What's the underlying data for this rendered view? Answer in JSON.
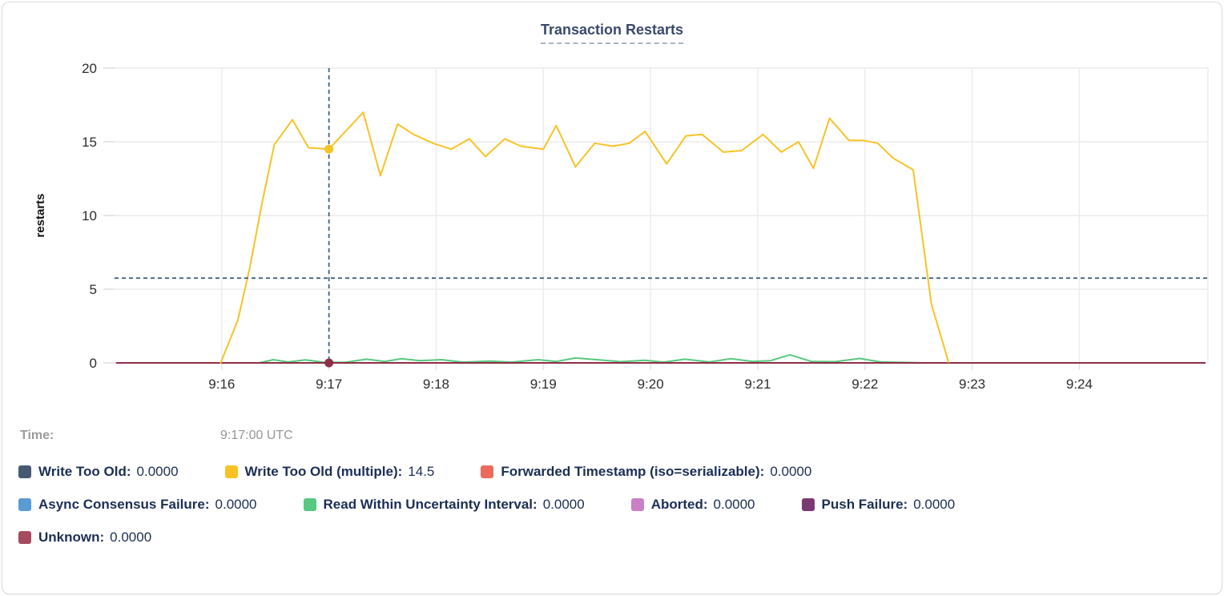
{
  "chart": {
    "title": "Transaction Restarts",
    "ylabel": "restarts"
  },
  "time_row": {
    "label": "Time:",
    "value": "9:17:00 UTC"
  },
  "legend": {
    "items": [
      {
        "label": "Write Too Old:",
        "value": "0.0000",
        "color": "#475872"
      },
      {
        "label": "Write Too Old (multiple):",
        "value": "14.5",
        "color": "#f7c325"
      },
      {
        "label": "Forwarded Timestamp (iso=serializable):",
        "value": "0.0000",
        "color": "#eb6a5c"
      },
      {
        "label": "Async Consensus Failure:",
        "value": "0.0000",
        "color": "#5a9bd3"
      },
      {
        "label": "Read Within Uncertainty Interval:",
        "value": "0.0000",
        "color": "#57c87f"
      },
      {
        "label": "Aborted:",
        "value": "0.0000",
        "color": "#ca7fc6"
      },
      {
        "label": "Push Failure:",
        "value": "0.0000",
        "color": "#7c3971"
      },
      {
        "label": "Unknown:",
        "value": "0.0000",
        "color": "#a64a5e"
      }
    ]
  },
  "chart_data": {
    "type": "line",
    "title": "Transaction Restarts",
    "ylabel": "restarts",
    "x_unit": "minutes after 9:15:00 UTC",
    "xlim": [
      0,
      10.2
    ],
    "ylim": [
      0,
      20
    ],
    "yticks": [
      0,
      5,
      10,
      15,
      20
    ],
    "xticks": [
      {
        "t": 1,
        "label": "9:16"
      },
      {
        "t": 2,
        "label": "9:17"
      },
      {
        "t": 3,
        "label": "9:18"
      },
      {
        "t": 4,
        "label": "9:19"
      },
      {
        "t": 5,
        "label": "9:20"
      },
      {
        "t": 6,
        "label": "9:21"
      },
      {
        "t": 7,
        "label": "9:22"
      },
      {
        "t": 8,
        "label": "9:23"
      },
      {
        "t": 9,
        "label": "9:24"
      }
    ],
    "grid": true,
    "legend_position": "bottom",
    "crosshair": {
      "t": 2,
      "time": "9:17:00 UTC",
      "y_guide_value": 5.75,
      "color": "#42627f",
      "dots": [
        {
          "series": "Write Too Old (multiple)",
          "v": 14.5,
          "color": "#f7c325"
        },
        {
          "series": "Unknown",
          "v": 0,
          "color": "#8e2f46"
        }
      ]
    },
    "series": [
      {
        "name": "Write Too Old",
        "color": "#475872",
        "value_at_cursor": 0.0,
        "points": [
          [
            0.02,
            0
          ],
          [
            10.17,
            0
          ]
        ]
      },
      {
        "name": "Forwarded Timestamp (iso=serializable)",
        "color": "#eb6a5c",
        "value_at_cursor": 0.0,
        "points": [
          [
            0.02,
            0
          ],
          [
            10.17,
            0
          ]
        ]
      },
      {
        "name": "Async Consensus Failure",
        "color": "#5a9bd3",
        "value_at_cursor": 0.0,
        "points": [
          [
            0.02,
            0
          ],
          [
            10.17,
            0
          ]
        ]
      },
      {
        "name": "Aborted",
        "color": "#ca7fc6",
        "value_at_cursor": 0.0,
        "points": [
          [
            0.02,
            0
          ],
          [
            10.17,
            0
          ]
        ]
      },
      {
        "name": "Push Failure",
        "color": "#7c3971",
        "value_at_cursor": 0.0,
        "points": [
          [
            0.02,
            0
          ],
          [
            10.17,
            0
          ]
        ]
      },
      {
        "name": "Read Within Uncertainty Interval",
        "color": "#57c87f",
        "value_at_cursor": 0.0,
        "points": [
          [
            1.35,
            0
          ],
          [
            1.48,
            0.22
          ],
          [
            1.62,
            0.06
          ],
          [
            1.78,
            0.2
          ],
          [
            1.95,
            0.05
          ],
          [
            2.15,
            0.03
          ],
          [
            2.35,
            0.25
          ],
          [
            2.52,
            0.1
          ],
          [
            2.68,
            0.28
          ],
          [
            2.85,
            0.15
          ],
          [
            3.05,
            0.22
          ],
          [
            3.25,
            0.05
          ],
          [
            3.5,
            0.12
          ],
          [
            3.7,
            0.05
          ],
          [
            3.95,
            0.22
          ],
          [
            4.12,
            0.1
          ],
          [
            4.3,
            0.33
          ],
          [
            4.5,
            0.22
          ],
          [
            4.72,
            0.08
          ],
          [
            4.95,
            0.18
          ],
          [
            5.12,
            0.05
          ],
          [
            5.32,
            0.25
          ],
          [
            5.55,
            0.06
          ],
          [
            5.75,
            0.28
          ],
          [
            5.95,
            0.1
          ],
          [
            6.12,
            0.15
          ],
          [
            6.3,
            0.55
          ],
          [
            6.5,
            0.1
          ],
          [
            6.72,
            0.08
          ],
          [
            6.95,
            0.3
          ],
          [
            7.15,
            0.06
          ],
          [
            7.35,
            0.03
          ],
          [
            7.55,
            0
          ]
        ]
      },
      {
        "name": "Unknown",
        "color": "#a64a5e",
        "stroke": "#8e2f46",
        "value_at_cursor": 0.0,
        "points": [
          [
            0.02,
            0
          ],
          [
            10.17,
            0
          ]
        ]
      },
      {
        "name": "Write Too Old (multiple)",
        "color": "#f7c325",
        "value_at_cursor": 14.5,
        "points": [
          [
            0.99,
            0
          ],
          [
            1.15,
            2.9
          ],
          [
            1.26,
            6.4
          ],
          [
            1.38,
            11.0
          ],
          [
            1.49,
            14.8
          ],
          [
            1.66,
            16.5
          ],
          [
            1.81,
            14.6
          ],
          [
            2.0,
            14.5
          ],
          [
            2.32,
            17.0
          ],
          [
            2.48,
            12.7
          ],
          [
            2.64,
            16.2
          ],
          [
            2.79,
            15.5
          ],
          [
            2.97,
            14.9
          ],
          [
            3.14,
            14.5
          ],
          [
            3.31,
            15.2
          ],
          [
            3.46,
            14.0
          ],
          [
            3.64,
            15.2
          ],
          [
            3.79,
            14.7
          ],
          [
            4.0,
            14.5
          ],
          [
            4.12,
            16.1
          ],
          [
            4.3,
            13.3
          ],
          [
            4.48,
            14.9
          ],
          [
            4.65,
            14.7
          ],
          [
            4.8,
            14.9
          ],
          [
            4.95,
            15.7
          ],
          [
            5.15,
            13.5
          ],
          [
            5.33,
            15.4
          ],
          [
            5.48,
            15.5
          ],
          [
            5.68,
            14.3
          ],
          [
            5.85,
            14.4
          ],
          [
            6.05,
            15.5
          ],
          [
            6.22,
            14.3
          ],
          [
            6.38,
            15.0
          ],
          [
            6.52,
            13.2
          ],
          [
            6.67,
            16.6
          ],
          [
            6.85,
            15.1
          ],
          [
            6.98,
            15.1
          ],
          [
            7.12,
            14.9
          ],
          [
            7.26,
            13.9
          ],
          [
            7.45,
            13.1
          ],
          [
            7.62,
            4.0
          ],
          [
            7.78,
            0.05
          ]
        ]
      }
    ]
  }
}
